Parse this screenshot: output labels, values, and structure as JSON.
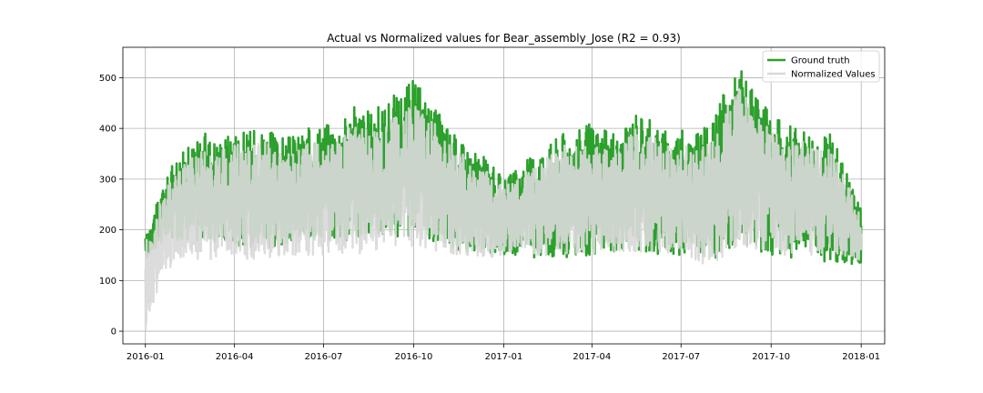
{
  "chart_data": {
    "type": "line",
    "title": "Actual vs Normalized values for Bear_assembly_Jose (R2 = 0.93)",
    "xlabel": "",
    "ylabel": "",
    "x_range": [
      "2015-12-09",
      "2018-01-25"
    ],
    "ylim": [
      -25,
      560
    ],
    "x_ticks": [
      "2016-01",
      "2016-04",
      "2016-07",
      "2016-10",
      "2017-01",
      "2017-04",
      "2017-07",
      "2017-10",
      "2018-01"
    ],
    "y_ticks": [
      0,
      100,
      200,
      300,
      400,
      500
    ],
    "grid": true,
    "legend_position": "top-right",
    "colors": {
      "ground_truth": "#2ca02c",
      "normalized": "#d9d9d9",
      "overlap": "#c7d6c4"
    },
    "series": [
      {
        "name": "Ground truth",
        "color": "#2ca02c",
        "x": [
          "2016-01-01",
          "2016-01-15",
          "2016-02-01",
          "2016-02-15",
          "2016-03-01",
          "2016-03-15",
          "2016-04-01",
          "2016-04-15",
          "2016-05-01",
          "2016-05-15",
          "2016-06-01",
          "2016-06-15",
          "2016-07-01",
          "2016-07-15",
          "2016-08-01",
          "2016-08-15",
          "2016-09-01",
          "2016-09-15",
          "2016-10-01",
          "2016-10-15",
          "2016-11-01",
          "2016-11-15",
          "2016-12-01",
          "2016-12-15",
          "2017-01-01",
          "2017-01-15",
          "2017-02-01",
          "2017-02-15",
          "2017-03-01",
          "2017-03-15",
          "2017-04-01",
          "2017-04-15",
          "2017-05-01",
          "2017-05-15",
          "2017-06-01",
          "2017-06-15",
          "2017-07-01",
          "2017-07-15",
          "2017-08-01",
          "2017-08-15",
          "2017-09-01",
          "2017-09-15",
          "2017-10-01",
          "2017-10-15",
          "2017-11-01",
          "2017-11-15",
          "2017-12-01",
          "2017-12-15",
          "2018-01-01"
        ],
        "high": [
          185,
          265,
          345,
          365,
          392,
          380,
          400,
          395,
          405,
          385,
          385,
          400,
          415,
          410,
          445,
          435,
          450,
          475,
          500,
          460,
          420,
          380,
          360,
          340,
          300,
          320,
          355,
          370,
          395,
          400,
          410,
          395,
          385,
          440,
          420,
          395,
          400,
          390,
          410,
          480,
          530,
          460,
          435,
          410,
          405,
          395,
          390,
          330,
          240
        ],
        "low": [
          140,
          170,
          180,
          180,
          175,
          170,
          170,
          165,
          165,
          165,
          175,
          180,
          180,
          180,
          175,
          180,
          185,
          185,
          185,
          180,
          170,
          160,
          155,
          150,
          150,
          150,
          145,
          140,
          140,
          145,
          150,
          155,
          160,
          160,
          155,
          150,
          150,
          145,
          140,
          150,
          165,
          160,
          150,
          145,
          145,
          140,
          135,
          135,
          130
        ]
      },
      {
        "name": "Normalized Values",
        "color": "#d9d9d9",
        "x": [
          "2016-01-01",
          "2016-01-15",
          "2016-02-01",
          "2016-02-15",
          "2016-03-01",
          "2016-03-15",
          "2016-04-01",
          "2016-04-15",
          "2016-05-01",
          "2016-05-15",
          "2016-06-01",
          "2016-06-15",
          "2016-07-01",
          "2016-07-15",
          "2016-08-01",
          "2016-08-15",
          "2016-09-01",
          "2016-09-15",
          "2016-10-01",
          "2016-10-15",
          "2016-11-01",
          "2016-11-15",
          "2016-12-01",
          "2016-12-15",
          "2017-01-01",
          "2017-01-15",
          "2017-02-01",
          "2017-02-15",
          "2017-03-01",
          "2017-03-15",
          "2017-04-01",
          "2017-04-15",
          "2017-05-01",
          "2017-05-15",
          "2017-06-01",
          "2017-06-15",
          "2017-07-01",
          "2017-07-15",
          "2017-08-01",
          "2017-08-15",
          "2017-09-01",
          "2017-09-15",
          "2017-10-01",
          "2017-10-15",
          "2017-11-01",
          "2017-11-15",
          "2017-12-01",
          "2017-12-15",
          "2018-01-01"
        ],
        "high": [
          175,
          250,
          320,
          340,
          365,
          355,
          370,
          365,
          375,
          360,
          360,
          375,
          385,
          380,
          410,
          405,
          415,
          440,
          460,
          425,
          390,
          355,
          335,
          315,
          285,
          300,
          330,
          345,
          365,
          370,
          380,
          365,
          360,
          405,
          390,
          365,
          370,
          360,
          380,
          440,
          495,
          425,
          405,
          380,
          375,
          365,
          360,
          310,
          230
        ],
        "low": [
          0,
          90,
          140,
          145,
          140,
          140,
          140,
          140,
          145,
          145,
          150,
          150,
          150,
          155,
          150,
          155,
          160,
          165,
          165,
          160,
          155,
          150,
          150,
          145,
          150,
          150,
          150,
          150,
          150,
          150,
          150,
          155,
          155,
          155,
          150,
          145,
          145,
          140,
          125,
          150,
          165,
          160,
          155,
          150,
          150,
          150,
          145,
          145,
          140
        ]
      }
    ]
  }
}
